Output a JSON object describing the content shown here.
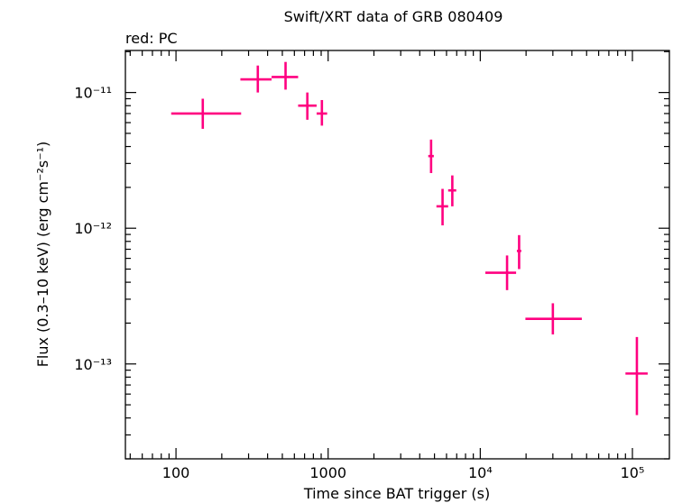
{
  "chart_data": {
    "type": "scatter",
    "title": "Swift/XRT data of GRB 080409",
    "subtitle": "red: PC",
    "xlabel": "Time since BAT trigger (s)",
    "ylabel": "Flux (0.3–10 keV) (erg cm⁻²s⁻¹)",
    "x_scale": "log",
    "y_scale": "log",
    "xlim": [
      46.5,
      175000
    ],
    "ylim": [
      2e-14,
      2.04e-11
    ],
    "x_tick_labels": [
      {
        "value": 100,
        "label": "100"
      },
      {
        "value": 1000,
        "label": "1000"
      },
      {
        "value": 10000,
        "label": "10⁴"
      },
      {
        "value": 100000,
        "label": "10⁵"
      }
    ],
    "y_tick_labels": [
      {
        "value": 1e-11,
        "label": "10⁻¹¹"
      },
      {
        "value": 1e-12,
        "label": "10⁻¹²"
      },
      {
        "value": 1e-13,
        "label": "10⁻¹³"
      }
    ],
    "color": "#ff0080",
    "series": [
      {
        "points": [
          {
            "x": 150,
            "xlo": 93,
            "xhi": 268,
            "y": 7e-12,
            "ylo": 5.4e-12,
            "yhi": 9e-12
          },
          {
            "x": 345,
            "xlo": 265,
            "xhi": 425,
            "y": 1.25e-11,
            "ylo": 1e-11,
            "yhi": 1.58e-11
          },
          {
            "x": 525,
            "xlo": 425,
            "xhi": 635,
            "y": 1.3e-11,
            "ylo": 1.05e-11,
            "yhi": 1.68e-11
          },
          {
            "x": 730,
            "xlo": 635,
            "xhi": 840,
            "y": 8e-12,
            "ylo": 6.3e-12,
            "yhi": 1e-11
          },
          {
            "x": 910,
            "xlo": 840,
            "xhi": 985,
            "y": 7e-12,
            "ylo": 5.7e-12,
            "yhi": 8.8e-12
          },
          {
            "x": 4750,
            "xlo": 4550,
            "xhi": 4950,
            "y": 3.4e-12,
            "ylo": 2.55e-12,
            "yhi": 4.5e-12
          },
          {
            "x": 5650,
            "xlo": 5150,
            "xhi": 6150,
            "y": 1.45e-12,
            "ylo": 1.05e-12,
            "yhi": 1.95e-12
          },
          {
            "x": 6550,
            "xlo": 6150,
            "xhi": 6950,
            "y": 1.9e-12,
            "ylo": 1.45e-12,
            "yhi": 2.45e-12
          },
          {
            "x": 15000,
            "xlo": 10800,
            "xhi": 17200,
            "y": 4.7e-13,
            "ylo": 3.5e-13,
            "yhi": 6.3e-13
          },
          {
            "x": 18000,
            "xlo": 17400,
            "xhi": 18600,
            "y": 6.8e-13,
            "ylo": 5e-13,
            "yhi": 8.9e-13
          },
          {
            "x": 30000,
            "xlo": 19800,
            "xhi": 46500,
            "y": 2.15e-13,
            "ylo": 1.65e-13,
            "yhi": 2.8e-13
          },
          {
            "x": 107000,
            "xlo": 90000,
            "xhi": 126000,
            "y": 8.5e-14,
            "ylo": 4.2e-14,
            "yhi": 1.58e-13
          }
        ]
      }
    ]
  }
}
